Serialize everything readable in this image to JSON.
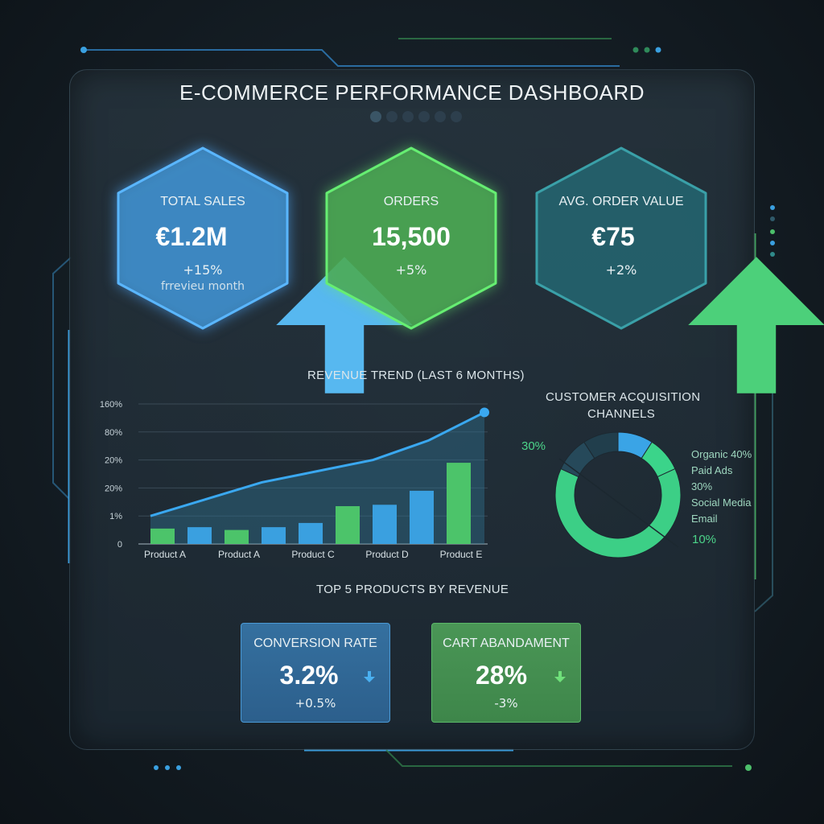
{
  "dashboard": {
    "title": "E-COMMERCE PERFORMANCE DASHBOARD"
  },
  "kpis": [
    {
      "label": "TOTAL SALES",
      "value": "€1.2M",
      "delta": "+15%",
      "sub": "frrevieu month",
      "trend": "up",
      "icon": "arrow-up-icon",
      "color": "#3a8fd9"
    },
    {
      "label": "ORDERS",
      "value": "15,500",
      "delta": "+5%",
      "sub": "",
      "trend": "none",
      "color": "#4fbf5a"
    },
    {
      "label": "AVG. ORDER VALUE",
      "value": "€75",
      "delta": "+2%",
      "sub": "",
      "trend": "up",
      "icon": "arrow-up-icon",
      "color": "#2b7b86"
    }
  ],
  "revenue_chart": {
    "title": "REVENUE TREND (LAST 6 MONTHS)"
  },
  "donut_chart": {
    "title_line1": "CUSTOMER ACQUISITION",
    "title_line2": "CHANNELS",
    "left_label": "30%",
    "bottom_label": "10%",
    "legend": [
      {
        "text": "Organic 40%"
      },
      {
        "text": "Paid Ads"
      },
      {
        "text": "30%"
      },
      {
        "text": "Social Media"
      },
      {
        "text": "Email"
      }
    ]
  },
  "products_section": {
    "title": "TOP 5 PRODUCTS BY REVENUE"
  },
  "cards": [
    {
      "label": "CONVERSION RATE",
      "value": "3.2%",
      "delta": "+0.5%",
      "icon": "arrow-down-icon",
      "color": "#2f6ea6"
    },
    {
      "label": "CART ABANDAMENT",
      "value": "28%",
      "delta": "-3%",
      "icon": "arrow-down-icon",
      "color": "#3e8f4c"
    }
  ],
  "chart_data": [
    {
      "type": "bar",
      "title": "REVENUE TREND (LAST 6 MONTHS)",
      "xlabel": "",
      "ylabel": "",
      "y_tick_labels": [
        "0",
        "1%",
        "20%",
        "20%",
        "80%",
        "160%"
      ],
      "x_tick_labels": [
        "Product A",
        "Product A",
        "Product C",
        "Product D",
        "Product E"
      ],
      "bars": [
        {
          "value": 0.55,
          "color": "#4cc46a"
        },
        {
          "value": 0.6,
          "color": "#3aa0e0"
        },
        {
          "value": 0.5,
          "color": "#4cc46a"
        },
        {
          "value": 0.6,
          "color": "#3aa0e0"
        },
        {
          "value": 0.75,
          "color": "#3aa0e0"
        },
        {
          "value": 1.35,
          "color": "#4cc46a"
        },
        {
          "value": 1.4,
          "color": "#3aa0e0"
        },
        {
          "value": 1.9,
          "color": "#3aa0e0"
        },
        {
          "value": 2.9,
          "color": "#4cc46a"
        }
      ],
      "trend_line": [
        1.0,
        1.6,
        2.2,
        2.6,
        3.0,
        3.7,
        4.7
      ],
      "ylim": [
        0,
        5
      ],
      "grid": true
    },
    {
      "type": "pie",
      "title": "CUSTOMER ACQUISITION CHANNELS",
      "slices": [
        {
          "label": "Organic",
          "value": 40,
          "color": "#4cd58a"
        },
        {
          "label": "Paid Ads",
          "value": 30,
          "color": "#3cb87a"
        },
        {
          "label": "Social Media",
          "value": 10,
          "color": "#2a4a58"
        },
        {
          "label": "Email",
          "value": 10,
          "color": "#2f5263"
        },
        {
          "label": "",
          "value": 10,
          "color": "#3aa4e6"
        }
      ]
    }
  ]
}
